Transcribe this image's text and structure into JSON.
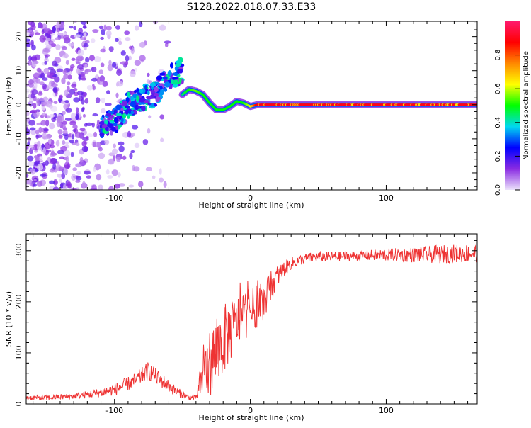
{
  "title": "S128.2022.018.07.33.E33",
  "chart_data": [
    {
      "type": "heatmap",
      "title": "",
      "xlabel": "Height of straight line (km)",
      "ylabel": "Frequency (Hz)",
      "xlim": [
        -165,
        167
      ],
      "ylim": [
        -25,
        24.5
      ],
      "xticks": [
        -100,
        0,
        100
      ],
      "yticks": [
        -20,
        -10,
        0,
        10,
        20
      ],
      "grid": false,
      "colorbar": {
        "label": "Normalized spectral amplitude",
        "range": [
          0,
          1
        ],
        "ticks": [
          "0.0",
          "0.2",
          "0.4",
          "0.6",
          "0.8"
        ],
        "colors": [
          "#ece2fb",
          "#8a2be2",
          "#0000ff",
          "#00d8f0",
          "#00ff00",
          "#ffff00",
          "#ff8800",
          "#ff0000",
          "#ff1a6e"
        ]
      },
      "ridge": {
        "x": [
          -50,
          -45,
          -40,
          -35,
          -30,
          -25,
          -20,
          -15,
          -10,
          -5,
          0,
          5,
          167
        ],
        "frequency": [
          3,
          4.5,
          4,
          3,
          0.5,
          -1.5,
          -1.5,
          -0.5,
          1,
          0.5,
          -0.5,
          0,
          0
        ],
        "amplitude": [
          0.45,
          0.5,
          0.55,
          0.5,
          0.5,
          0.5,
          0.5,
          0.5,
          0.5,
          0.5,
          0.6,
          0.9,
          0.9
        ]
      },
      "scatter_band": {
        "x": [
          -110,
          -100,
          -90,
          -80,
          -70,
          -60,
          -50
        ],
        "frequency": [
          -6,
          -5,
          0,
          2,
          3,
          8,
          10
        ]
      }
    },
    {
      "type": "line",
      "title": "",
      "xlabel": "Height of straight line (km)",
      "ylabel": "SNR (10 * v/v)",
      "xlim": [
        -165,
        167
      ],
      "ylim": [
        0,
        333
      ],
      "xticks": [
        -100,
        0,
        100
      ],
      "yticks": [
        0,
        100,
        200,
        300
      ],
      "grid": false,
      "color": "#ee3333",
      "x": [
        -165,
        -150,
        -130,
        -115,
        -100,
        -85,
        -75,
        -65,
        -55,
        -45,
        -40,
        -35,
        -30,
        -25,
        -20,
        -15,
        -10,
        -5,
        0,
        5,
        10,
        15,
        20,
        25,
        30,
        40,
        50,
        60,
        80,
        100,
        120,
        140,
        160,
        167
      ],
      "values": [
        12,
        12,
        15,
        20,
        28,
        45,
        65,
        45,
        25,
        12,
        12,
        55,
        80,
        100,
        125,
        140,
        160,
        175,
        180,
        190,
        200,
        230,
        250,
        265,
        275,
        285,
        288,
        288,
        290,
        292,
        292,
        293,
        295,
        295
      ],
      "noise": [
        5,
        5,
        6,
        8,
        12,
        15,
        18,
        15,
        10,
        5,
        5,
        50,
        65,
        70,
        70,
        60,
        50,
        50,
        45,
        40,
        35,
        30,
        22,
        15,
        12,
        10,
        10,
        10,
        10,
        12,
        15,
        18,
        18,
        18
      ]
    }
  ]
}
